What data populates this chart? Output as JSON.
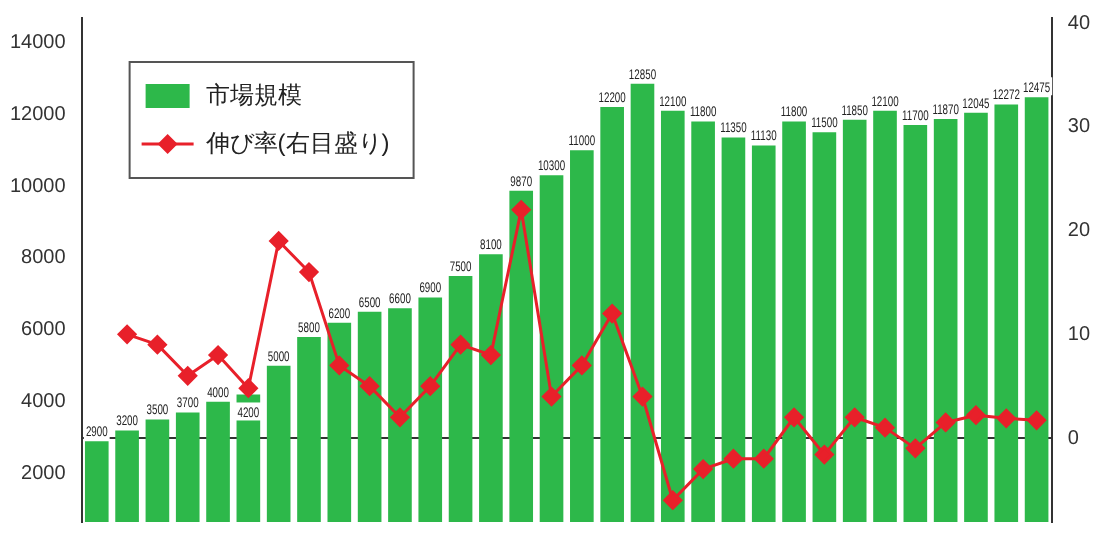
{
  "chart_data": {
    "type": "bar",
    "categories": [
      null,
      null,
      null,
      null,
      null,
      null,
      null,
      null,
      null,
      null,
      null,
      null,
      null,
      null,
      null,
      null,
      null,
      null,
      null,
      null,
      null,
      null,
      null,
      null,
      null,
      null,
      null,
      null,
      null,
      null,
      null,
      null
    ],
    "series": [
      {
        "name": "市場規模",
        "color": "#2db84a",
        "values": [
          2900,
          3200,
          3500,
          3700,
          4000,
          4200,
          5000,
          5800,
          6200,
          6500,
          6600,
          6900,
          7500,
          8100,
          9870,
          10300,
          11000,
          12200,
          12850,
          12100,
          11800,
          11350,
          11130,
          11800,
          11500,
          11850,
          12100,
          11700,
          11870,
          12045,
          12272,
          12475
        ],
        "value_labels": [
          "2900",
          "3200",
          "3500",
          "3700",
          "4000",
          "4200",
          "5000",
          "5800",
          "6200",
          "6500",
          "6600",
          "6900",
          "7500",
          "8100",
          "9870",
          "10300",
          "11000",
          "12200",
          "12850",
          "12100",
          "11800",
          "11350",
          "11130",
          "11800",
          "11500",
          "11850",
          "12100",
          "11700",
          "11870",
          "12045",
          "12272",
          "12475"
        ]
      },
      {
        "name": "伸び率(右目盛り)",
        "type": "line",
        "axis": "y2",
        "color": "#e8202a",
        "values": [
          null,
          10,
          9,
          6,
          8,
          4.8,
          19,
          16,
          7,
          5,
          2,
          5,
          9,
          8,
          22,
          4,
          7,
          12,
          4,
          -6,
          -3,
          -2,
          -2,
          2,
          -1.6,
          2,
          1,
          -1,
          1.5,
          2.2,
          1.9,
          1.7
        ]
      }
    ],
    "ylim": [
      650,
      14680
    ],
    "yticks": [
      2000,
      4000,
      6000,
      8000,
      10000,
      12000,
      14000
    ],
    "y2lim": [
      -8.1,
      40.5
    ],
    "y2ticks": [
      0,
      10,
      20,
      30,
      40
    ],
    "ref_lines": [
      {
        "axis": "y2",
        "value": 0,
        "color": "#333333"
      }
    ],
    "tick_labels": "y",
    "legend": "top left",
    "marker": "diamond",
    "grid": false
  }
}
